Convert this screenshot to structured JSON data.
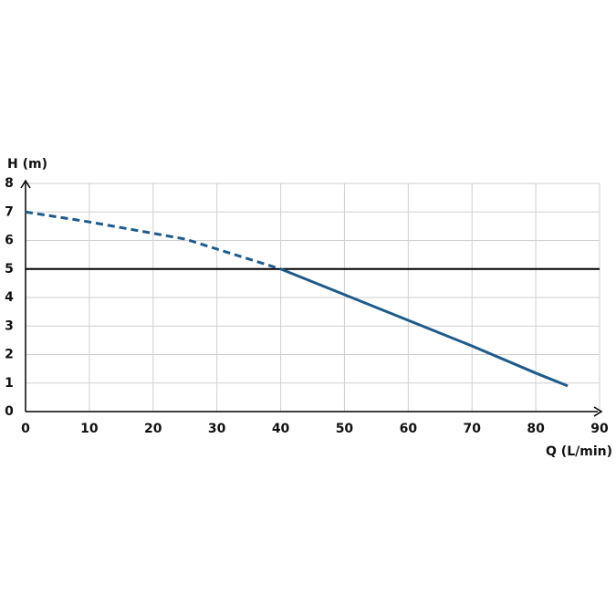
{
  "chart_data": {
    "type": "line",
    "x_label": "Q (L/min)",
    "y_label": "H (m)",
    "x": [
      0,
      10,
      20,
      25,
      30,
      35,
      40,
      50,
      60,
      70,
      80,
      85
    ],
    "series": [
      {
        "color": "#1f5a8a",
        "dashed": true,
        "values": [
          7.0,
          6.65,
          6.25,
          6.05,
          5.7,
          5.35,
          5.0,
          null,
          null,
          null,
          null,
          null
        ]
      },
      {
        "color": "#1f5a8a",
        "dashed": false,
        "values": [
          null,
          null,
          null,
          null,
          null,
          null,
          5.0,
          4.1,
          3.2,
          2.3,
          1.35,
          0.9
        ]
      }
    ],
    "hline": 5,
    "hline_color": "#000000",
    "xlim": [
      0,
      90
    ],
    "xticks": [
      0,
      10,
      20,
      30,
      40,
      50,
      60,
      70,
      80,
      90
    ],
    "ylim": [
      0,
      8
    ],
    "yticks": [
      0,
      1,
      2,
      3,
      4,
      5,
      6,
      7,
      8
    ],
    "grid": true
  }
}
